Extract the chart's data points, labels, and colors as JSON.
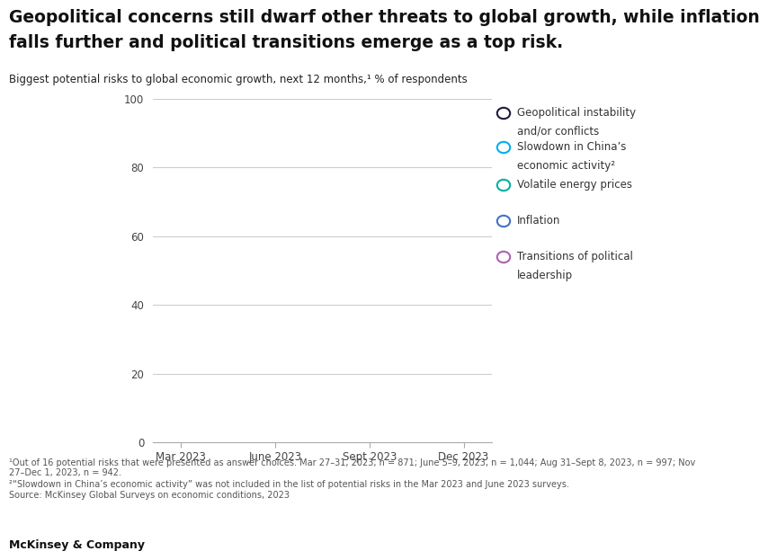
{
  "title_line1": "Geopolitical concerns still dwarf other threats to global growth, while inflation",
  "title_line2": "falls further and political transitions emerge as a top risk.",
  "subtitle": "Biggest potential risks to global economic growth, next 12 months,¹ % of respondents",
  "x_labels": [
    "Mar 2023",
    "June 2023",
    "Sept 2023",
    "Dec 2023"
  ],
  "x_positions": [
    0,
    1,
    2,
    3
  ],
  "ylim": [
    0,
    100
  ],
  "yticks": [
    0,
    20,
    40,
    60,
    80,
    100
  ],
  "series": [
    {
      "label_line1": "Geopolitical instability",
      "label_line2": "and/or conflicts",
      "color": "#1c1c3a"
    },
    {
      "label_line1": "Slowdown in China’s",
      "label_line2": "economic activity²",
      "color": "#00b0f0"
    },
    {
      "label_line1": "Volatile energy prices",
      "label_line2": "",
      "color": "#00b0a0"
    },
    {
      "label_line1": "Inflation",
      "label_line2": "",
      "color": "#4472c4"
    },
    {
      "label_line1": "Transitions of political",
      "label_line2": "leadership",
      "color": "#b060b0"
    }
  ],
  "footnote1": "¹Out of 16 potential risks that were presented as answer choices. Mar 27–31, 2023, n = 871; June 5–9, 2023, n = 1,044; Aug 31–Sept 8, 2023, n = 997; Nov",
  "footnote1b": "27–Dec 1, 2023, n = 942.",
  "footnote2": "²“Slowdown in China’s economic activity” was not included in the list of potential risks in the Mar 2023 and June 2023 surveys.",
  "footnote3": "Source: McKinsey Global Surveys on economic conditions, 2023",
  "brand": "McKinsey & Company",
  "bg_color": "#ffffff",
  "grid_color": "#cccccc",
  "axis_color": "#aaaaaa",
  "title_fontsize": 13.5,
  "subtitle_fontsize": 8.5,
  "tick_fontsize": 8.5,
  "legend_fontsize": 8.5,
  "footnote_fontsize": 7.0
}
